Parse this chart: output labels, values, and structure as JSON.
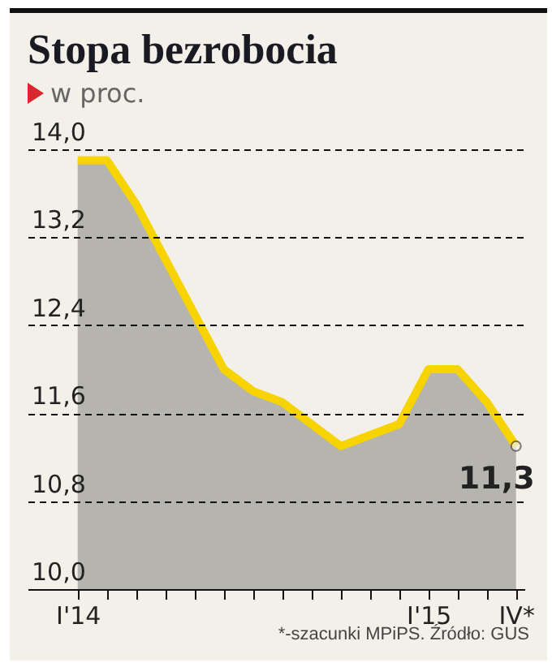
{
  "chart_data": {
    "type": "area",
    "title": "Stopa bezrobocia",
    "subtitle": "w proc.",
    "categories": [
      "I'14",
      null,
      null,
      null,
      null,
      null,
      null,
      null,
      null,
      null,
      null,
      null,
      "I'15",
      null,
      null,
      "IV*"
    ],
    "series": [
      {
        "color": "#f7d300",
        "values": [
          13.9,
          13.9,
          13.5,
          13.0,
          12.5,
          12.0,
          11.8,
          11.7,
          11.5,
          11.3,
          11.4,
          11.5,
          12.0,
          12.0,
          11.7,
          11.3
        ],
        "value_labels": [
          null,
          null,
          null,
          null,
          null,
          null,
          null,
          null,
          null,
          null,
          null,
          null,
          null,
          null,
          null,
          "11,3"
        ]
      }
    ],
    "ylim": [
      10.0,
      14.0
    ],
    "yticks": [
      {
        "value": 10.0,
        "label": "10,0"
      },
      {
        "value": 10.8,
        "label": "10,8"
      },
      {
        "value": 11.6,
        "label": "11,6"
      },
      {
        "value": 12.4,
        "label": "12,4"
      },
      {
        "value": 13.2,
        "label": "13,2"
      },
      {
        "value": 14.0,
        "label": "14,0"
      }
    ],
    "grid": "y",
    "annotations": [
      "*-szacunki MPiPS. Źródło: GUS"
    ]
  }
}
